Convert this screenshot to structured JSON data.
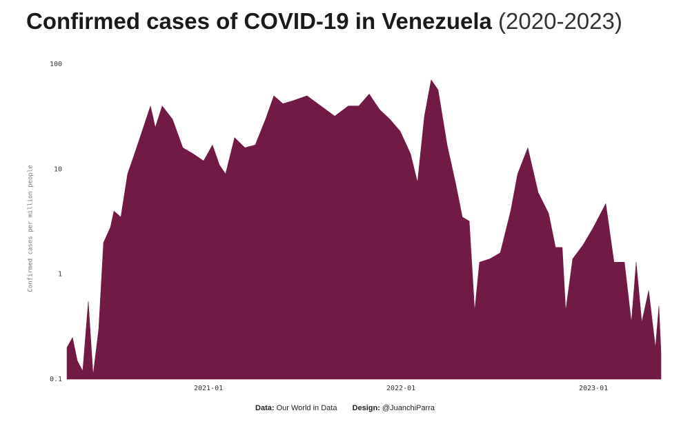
{
  "chart_data": {
    "type": "area",
    "title": "Confirmed cases of COVID-19 in Venezuela",
    "subtitle": "(2020-2023)",
    "y_label": "Confirmed cases per million people",
    "source_label": "Data:",
    "source": "Our World in Data",
    "design_label": "Design:",
    "design": "@JuanchiParra",
    "color": "#701a45",
    "log_scale": true,
    "ylim": [
      0.1,
      100
    ],
    "yticks": [
      0.1,
      1,
      10,
      100
    ],
    "xlim": [
      2020.265,
      2023.351
    ],
    "xticks": [
      {
        "value": 2021,
        "label": "2021-01"
      },
      {
        "value": 2022,
        "label": "2022-01"
      },
      {
        "value": 2023,
        "label": "2023-01"
      }
    ],
    "x": [
      2020.265,
      2020.294,
      2020.319,
      2020.347,
      2020.376,
      2020.401,
      2020.43,
      2020.455,
      2020.491,
      2020.509,
      2020.545,
      2020.58,
      2020.616,
      2020.652,
      2020.699,
      2020.724,
      2020.76,
      2020.813,
      2020.867,
      2020.921,
      2020.975,
      2021.021,
      2021.057,
      2021.089,
      2021.136,
      2021.19,
      2021.243,
      2021.297,
      2021.34,
      2021.387,
      2021.441,
      2021.512,
      2021.584,
      2021.656,
      2021.727,
      2021.781,
      2021.835,
      2021.889,
      2021.942,
      2021.996,
      2022.05,
      2022.086,
      2022.122,
      2022.157,
      2022.193,
      2022.24,
      2022.283,
      2022.319,
      2022.355,
      2022.383,
      2022.408,
      2022.462,
      2022.516,
      2022.57,
      2022.606,
      2022.659,
      2022.713,
      2022.767,
      2022.803,
      2022.838,
      2022.856,
      2022.892,
      2022.946,
      2023.0,
      2023.064,
      2023.107,
      2023.161,
      2023.197,
      2023.222,
      2023.251,
      2023.287,
      2023.322,
      2023.34,
      2023.351
    ],
    "values": [
      0.2,
      0.25,
      0.15,
      0.12,
      0.55,
      0.11,
      0.3,
      2,
      2.8,
      4,
      3.5,
      9,
      14,
      22,
      40,
      25,
      40,
      30,
      16,
      14,
      12,
      17,
      11,
      9,
      20,
      16,
      17,
      30,
      50,
      42,
      45,
      50,
      40,
      32,
      40,
      40,
      52,
      37,
      30,
      23,
      14,
      7.5,
      32,
      71,
      57,
      17,
      7.5,
      3.5,
      3.2,
      0.45,
      1.3,
      1.4,
      1.6,
      4,
      9,
      16,
      6,
      3.8,
      1.8,
      1.8,
      0.45,
      1.4,
      1.9,
      2.8,
      4.7,
      1.3,
      1.3,
      0.35,
      1.3,
      0.35,
      0.7,
      0.2,
      0.5,
      0.18
    ]
  }
}
